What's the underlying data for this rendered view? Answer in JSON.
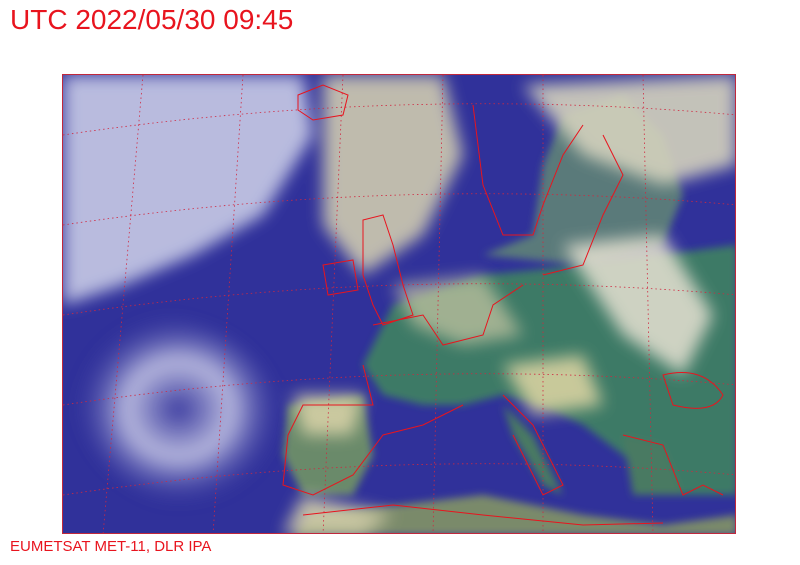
{
  "header": {
    "title": "UTC 2022/05/30 09:45"
  },
  "footer": {
    "credit": "EUMETSAT MET-11, DLR IPA"
  },
  "map": {
    "kind": "satellite-rgb-composite",
    "region": "Europe and North Atlantic",
    "colors": {
      "ocean": "#2e2f92",
      "land": "#3f7a63",
      "cloud": "#d9d6b4",
      "high_cloud": "#b9c2ee",
      "borders": "#e8141e",
      "frame": "#c0283c"
    }
  }
}
